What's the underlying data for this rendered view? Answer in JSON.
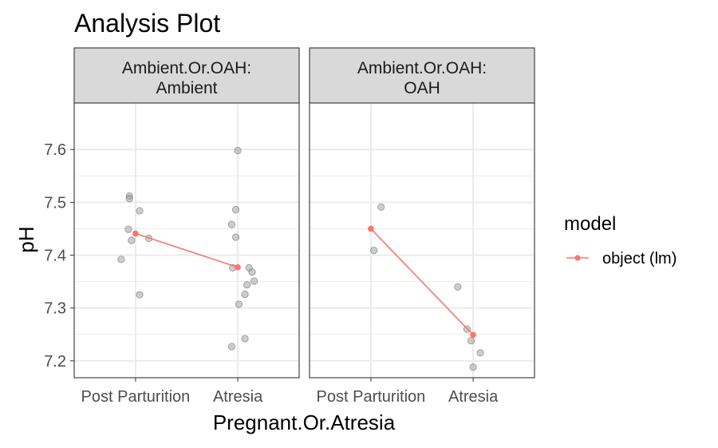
{
  "chart_data": {
    "type": "scatter",
    "title": "Analysis Plot",
    "xlabel": "Pregnant.Or.Atresia",
    "ylabel": "pH",
    "categories": [
      "Post Parturition",
      "Atresia"
    ],
    "ylim": [
      7.168,
      7.688
    ],
    "yticks": [
      7.2,
      7.3,
      7.4,
      7.5,
      7.6
    ],
    "grid": true,
    "legend": {
      "title": "model",
      "position": "right",
      "entries": [
        {
          "label": "object (lm)",
          "color": "#f8766d"
        }
      ]
    },
    "colors": {
      "points": "#999999",
      "fit": "#f8766d",
      "strip_fill": "#d9d9d9",
      "panel_border": "#333333",
      "grid": "#ebebeb"
    },
    "panels": [
      {
        "strip": [
          "Ambient.Or.OAH:",
          "Ambient"
        ],
        "points": [
          {
            "x": 0.94,
            "y": 7.512
          },
          {
            "x": 0.94,
            "y": 7.507
          },
          {
            "x": 1.04,
            "y": 7.484
          },
          {
            "x": 0.93,
            "y": 7.449
          },
          {
            "x": 0.96,
            "y": 7.428
          },
          {
            "x": 1.13,
            "y": 7.432
          },
          {
            "x": 0.86,
            "y": 7.392
          },
          {
            "x": 1.04,
            "y": 7.325
          },
          {
            "x": 2.0,
            "y": 7.598
          },
          {
            "x": 1.98,
            "y": 7.486
          },
          {
            "x": 1.94,
            "y": 7.458
          },
          {
            "x": 1.98,
            "y": 7.434
          },
          {
            "x": 1.95,
            "y": 7.376
          },
          {
            "x": 2.11,
            "y": 7.376
          },
          {
            "x": 2.14,
            "y": 7.368
          },
          {
            "x": 2.16,
            "y": 7.351
          },
          {
            "x": 2.09,
            "y": 7.344
          },
          {
            "x": 2.07,
            "y": 7.326
          },
          {
            "x": 2.01,
            "y": 7.307
          },
          {
            "x": 2.07,
            "y": 7.242
          },
          {
            "x": 1.94,
            "y": 7.227
          }
        ],
        "fit": [
          {
            "x": 1,
            "y": 7.441
          },
          {
            "x": 2,
            "y": 7.377
          }
        ]
      },
      {
        "strip": [
          "Ambient.Or.OAH:",
          "OAH"
        ],
        "points": [
          {
            "x": 1.1,
            "y": 7.491
          },
          {
            "x": 1.03,
            "y": 7.409
          },
          {
            "x": 1.85,
            "y": 7.34
          },
          {
            "x": 1.94,
            "y": 7.26
          },
          {
            "x": 1.98,
            "y": 7.238
          },
          {
            "x": 2.07,
            "y": 7.215
          },
          {
            "x": 2.0,
            "y": 7.188
          }
        ],
        "fit": [
          {
            "x": 1,
            "y": 7.45
          },
          {
            "x": 2,
            "y": 7.249
          }
        ]
      }
    ]
  }
}
